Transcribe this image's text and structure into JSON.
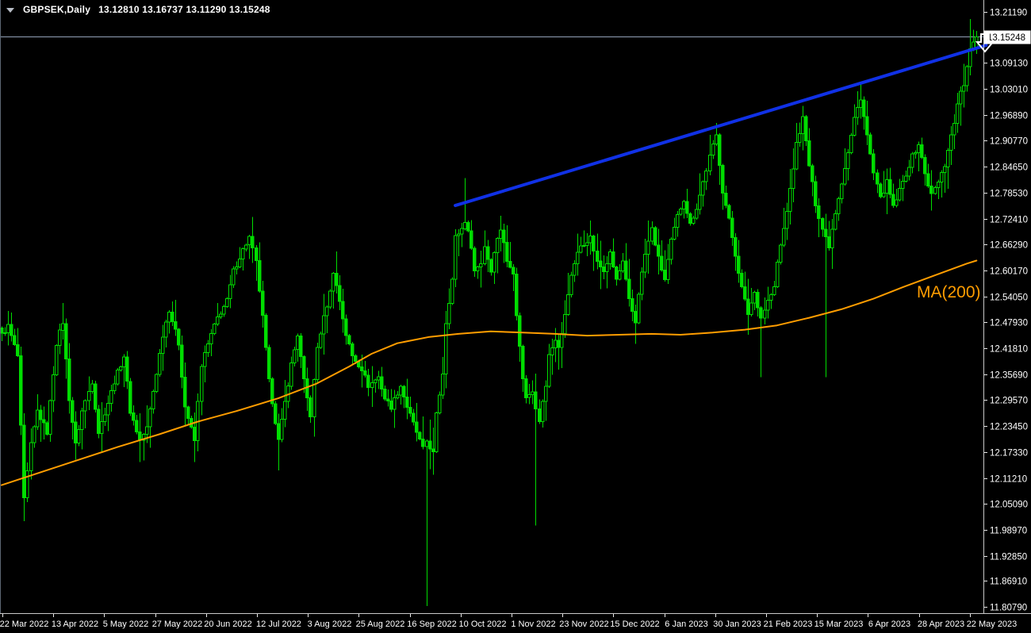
{
  "header": {
    "symbol_period": "GBPSEK,Daily",
    "quotes": "13.12810 13.16737 13.11290 13.15248"
  },
  "colors": {
    "background": "#000000",
    "candle": "#00dd00",
    "bull_fill": "#000000",
    "ma": "#ff9d00",
    "trendline": "#1031e6",
    "bid_line": "#93a1b8",
    "axis_line": "#c8c8c8",
    "left_border": "#5c6673",
    "axis_text": "#ffffff",
    "price_flag_bg": "#ffffff",
    "price_flag_text": "#000000",
    "marker": "#ffffff"
  },
  "chart_data": {
    "type": "candlestick",
    "symbol": "GBPSEK",
    "period": "Daily",
    "title": "GBPSEK,Daily",
    "ohlc": {
      "open": 13.1281,
      "high": 13.16737,
      "low": 13.1129,
      "close": 13.15248
    },
    "current_price_label": "13.15248",
    "grid": false,
    "ylim": [
      11.797,
      13.24
    ],
    "y_axis_ticks": [
      "13.21190",
      "13.09130",
      "13.03010",
      "12.96890",
      "12.90770",
      "12.84650",
      "12.78530",
      "12.72410",
      "12.66290",
      "12.60170",
      "12.54050",
      "12.47930",
      "12.41810",
      "12.35690",
      "12.29570",
      "12.23450",
      "12.17330",
      "12.11210",
      "12.05090",
      "11.98970",
      "11.92850",
      "11.86910",
      "11.80790"
    ],
    "x_axis_labels": [
      "22 Mar 2022",
      "13 Apr 2022",
      "5 May 2022",
      "27 May 2022",
      "20 Jun 2022",
      "12 Jul 2022",
      "3 Aug 2022",
      "25 Aug 2022",
      "16 Sep 2022",
      "10 Oct 2022",
      "1 Nov 2022",
      "23 Nov 2022",
      "15 Dec 2022",
      "6 Jan 2023",
      "30 Jan 2023",
      "21 Feb 2023",
      "15 Mar 2023",
      "6 Apr 2023",
      "28 Apr 2023",
      "22 May 2023"
    ],
    "bar_count": 304,
    "close_anchors": [
      [
        0,
        12.45
      ],
      [
        2,
        12.47
      ],
      [
        5,
        12.4
      ],
      [
        7,
        12.06
      ],
      [
        9,
        12.19
      ],
      [
        11,
        12.27
      ],
      [
        14,
        12.22
      ],
      [
        17,
        12.43
      ],
      [
        19,
        12.48
      ],
      [
        21,
        12.3
      ],
      [
        23,
        12.19
      ],
      [
        25,
        12.27
      ],
      [
        28,
        12.34
      ],
      [
        30,
        12.22
      ],
      [
        33,
        12.29
      ],
      [
        35,
        12.34
      ],
      [
        38,
        12.4
      ],
      [
        40,
        12.27
      ],
      [
        43,
        12.2
      ],
      [
        45,
        12.23
      ],
      [
        48,
        12.36
      ],
      [
        50,
        12.45
      ],
      [
        52,
        12.51
      ],
      [
        55,
        12.43
      ],
      [
        57,
        12.28
      ],
      [
        60,
        12.2
      ],
      [
        62,
        12.38
      ],
      [
        65,
        12.45
      ],
      [
        67,
        12.49
      ],
      [
        70,
        12.53
      ],
      [
        72,
        12.6
      ],
      [
        75,
        12.65
      ],
      [
        77,
        12.68
      ],
      [
        79,
        12.62
      ],
      [
        81,
        12.49
      ],
      [
        83,
        12.34
      ],
      [
        86,
        12.2
      ],
      [
        88,
        12.29
      ],
      [
        90,
        12.38
      ],
      [
        92,
        12.45
      ],
      [
        94,
        12.34
      ],
      [
        96,
        12.26
      ],
      [
        98,
        12.42
      ],
      [
        100,
        12.49
      ],
      [
        102,
        12.55
      ],
      [
        103,
        12.6
      ],
      [
        105,
        12.53
      ],
      [
        107,
        12.45
      ],
      [
        109,
        12.4
      ],
      [
        112,
        12.37
      ],
      [
        114,
        12.33
      ],
      [
        117,
        12.35
      ],
      [
        119,
        12.3
      ],
      [
        121,
        12.28
      ],
      [
        124,
        12.33
      ],
      [
        126,
        12.28
      ],
      [
        129,
        12.22
      ],
      [
        131,
        12.18
      ],
      [
        132,
        12.2
      ],
      [
        134,
        12.17
      ],
      [
        135,
        12.26
      ],
      [
        137,
        12.36
      ],
      [
        138,
        12.48
      ],
      [
        140,
        12.58
      ],
      [
        141,
        12.68
      ],
      [
        143,
        12.7
      ],
      [
        144,
        12.72
      ],
      [
        146,
        12.66
      ],
      [
        147,
        12.6
      ],
      [
        149,
        12.62
      ],
      [
        150,
        12.66
      ],
      [
        152,
        12.6
      ],
      [
        153,
        12.65
      ],
      [
        155,
        12.7
      ],
      [
        156,
        12.67
      ],
      [
        157,
        12.62
      ],
      [
        159,
        12.6
      ],
      [
        160,
        12.5
      ],
      [
        161,
        12.42
      ],
      [
        162,
        12.35
      ],
      [
        163,
        12.3
      ],
      [
        165,
        12.32
      ],
      [
        166,
        12.28
      ],
      [
        167,
        12.25
      ],
      [
        169,
        12.33
      ],
      [
        170,
        12.4
      ],
      [
        172,
        12.44
      ],
      [
        173,
        12.42
      ],
      [
        174,
        12.45
      ],
      [
        176,
        12.55
      ],
      [
        178,
        12.62
      ],
      [
        180,
        12.66
      ],
      [
        183,
        12.68
      ],
      [
        185,
        12.62
      ],
      [
        187,
        12.6
      ],
      [
        189,
        12.64
      ],
      [
        191,
        12.58
      ],
      [
        193,
        12.62
      ],
      [
        195,
        12.53
      ],
      [
        197,
        12.48
      ],
      [
        198,
        12.55
      ],
      [
        200,
        12.64
      ],
      [
        202,
        12.7
      ],
      [
        204,
        12.63
      ],
      [
        206,
        12.58
      ],
      [
        208,
        12.67
      ],
      [
        210,
        12.73
      ],
      [
        212,
        12.77
      ],
      [
        214,
        12.71
      ],
      [
        216,
        12.75
      ],
      [
        218,
        12.81
      ],
      [
        220,
        12.87
      ],
      [
        222,
        12.92
      ],
      [
        224,
        12.79
      ],
      [
        226,
        12.72
      ],
      [
        228,
        12.64
      ],
      [
        230,
        12.56
      ],
      [
        232,
        12.5
      ],
      [
        234,
        12.55
      ],
      [
        236,
        12.49
      ],
      [
        238,
        12.53
      ],
      [
        240,
        12.56
      ],
      [
        241,
        12.62
      ],
      [
        243,
        12.7
      ],
      [
        245,
        12.79
      ],
      [
        247,
        12.9
      ],
      [
        249,
        12.96
      ],
      [
        251,
        12.85
      ],
      [
        253,
        12.76
      ],
      [
        255,
        12.7
      ],
      [
        257,
        12.66
      ],
      [
        259,
        12.74
      ],
      [
        261,
        12.81
      ],
      [
        263,
        12.88
      ],
      [
        265,
        12.96
      ],
      [
        267,
        13.01
      ],
      [
        269,
        12.92
      ],
      [
        271,
        12.83
      ],
      [
        273,
        12.77
      ],
      [
        275,
        12.81
      ],
      [
        277,
        12.75
      ],
      [
        279,
        12.79
      ],
      [
        281,
        12.83
      ],
      [
        283,
        12.87
      ],
      [
        285,
        12.9
      ],
      [
        287,
        12.83
      ],
      [
        289,
        12.78
      ],
      [
        291,
        12.81
      ],
      [
        293,
        12.85
      ],
      [
        294,
        12.89
      ],
      [
        296,
        12.95
      ],
      [
        297,
        13.0
      ],
      [
        299,
        13.04
      ],
      [
        300,
        13.08
      ],
      [
        301,
        13.12
      ],
      [
        302,
        13.14
      ],
      [
        303,
        13.152
      ]
    ],
    "spikes": [
      {
        "i": 7,
        "low": 12.01
      },
      {
        "i": 43,
        "low": 12.15
      },
      {
        "i": 60,
        "low": 12.15
      },
      {
        "i": 86,
        "low": 12.13
      },
      {
        "i": 132,
        "low": 11.81
      },
      {
        "i": 134,
        "low": 12.12
      },
      {
        "i": 144,
        "high": 12.82
      },
      {
        "i": 166,
        "low": 12.0
      },
      {
        "i": 183,
        "high": 12.72
      },
      {
        "i": 222,
        "high": 12.95
      },
      {
        "i": 236,
        "low": 12.35
      },
      {
        "i": 249,
        "high": 12.99
      },
      {
        "i": 256,
        "low": 12.35
      },
      {
        "i": 267,
        "high": 13.045
      },
      {
        "i": 301,
        "high": 13.195
      }
    ],
    "ma200": {
      "label": "MA(200)",
      "period": 200,
      "anchors": [
        [
          0,
          12.095
        ],
        [
          12,
          12.125
        ],
        [
          24,
          12.155
        ],
        [
          36,
          12.185
        ],
        [
          49,
          12.215
        ],
        [
          61,
          12.245
        ],
        [
          73,
          12.27
        ],
        [
          86,
          12.3
        ],
        [
          98,
          12.335
        ],
        [
          108,
          12.375
        ],
        [
          115,
          12.405
        ],
        [
          123,
          12.43
        ],
        [
          133,
          12.445
        ],
        [
          142,
          12.452
        ],
        [
          152,
          12.458
        ],
        [
          162,
          12.455
        ],
        [
          172,
          12.452
        ],
        [
          182,
          12.448
        ],
        [
          192,
          12.45
        ],
        [
          202,
          12.452
        ],
        [
          211,
          12.45
        ],
        [
          221,
          12.455
        ],
        [
          231,
          12.462
        ],
        [
          241,
          12.472
        ],
        [
          251,
          12.49
        ],
        [
          261,
          12.51
        ],
        [
          271,
          12.535
        ],
        [
          280,
          12.562
        ],
        [
          290,
          12.59
        ],
        [
          300,
          12.618
        ],
        [
          303,
          12.625
        ]
      ]
    },
    "trendline": {
      "from_bar": 141,
      "from_price": 12.755,
      "to_bar": 306,
      "to_price": 13.133
    },
    "marker": {
      "shape": "down-arrow",
      "bar": 305,
      "price": 13.152
    }
  }
}
